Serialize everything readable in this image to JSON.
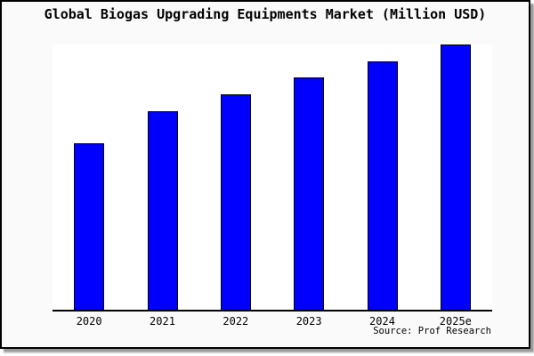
{
  "title": "Global Biogas Upgrading Equipments Market (Million USD)",
  "source_credit": "Source: Prof Research",
  "colors": {
    "bar_fill": "#0000ff",
    "bar_edge": "#000000",
    "figure_background": "#fafafa",
    "plot_background": "#ffffff",
    "frame_border": "#000000",
    "text": "#000000"
  },
  "chart_data": {
    "type": "bar",
    "title": "Global Biogas Upgrading Equipments Market (Million USD)",
    "categories": [
      "2020",
      "2021",
      "2022",
      "2023",
      "2024",
      "2025e"
    ],
    "values": [
      62.7,
      75.0,
      81.3,
      87.7,
      93.7,
      100.0
    ],
    "xlabel": "",
    "ylabel": "",
    "ylim": [
      0,
      100
    ],
    "grid": false,
    "legend": false,
    "y_axis_labeled": false,
    "note": "No y-axis tick labels shown in chart; values are relative bar heights with 2025e = 100.",
    "annotations": [
      "Source: Prof Research"
    ]
  }
}
